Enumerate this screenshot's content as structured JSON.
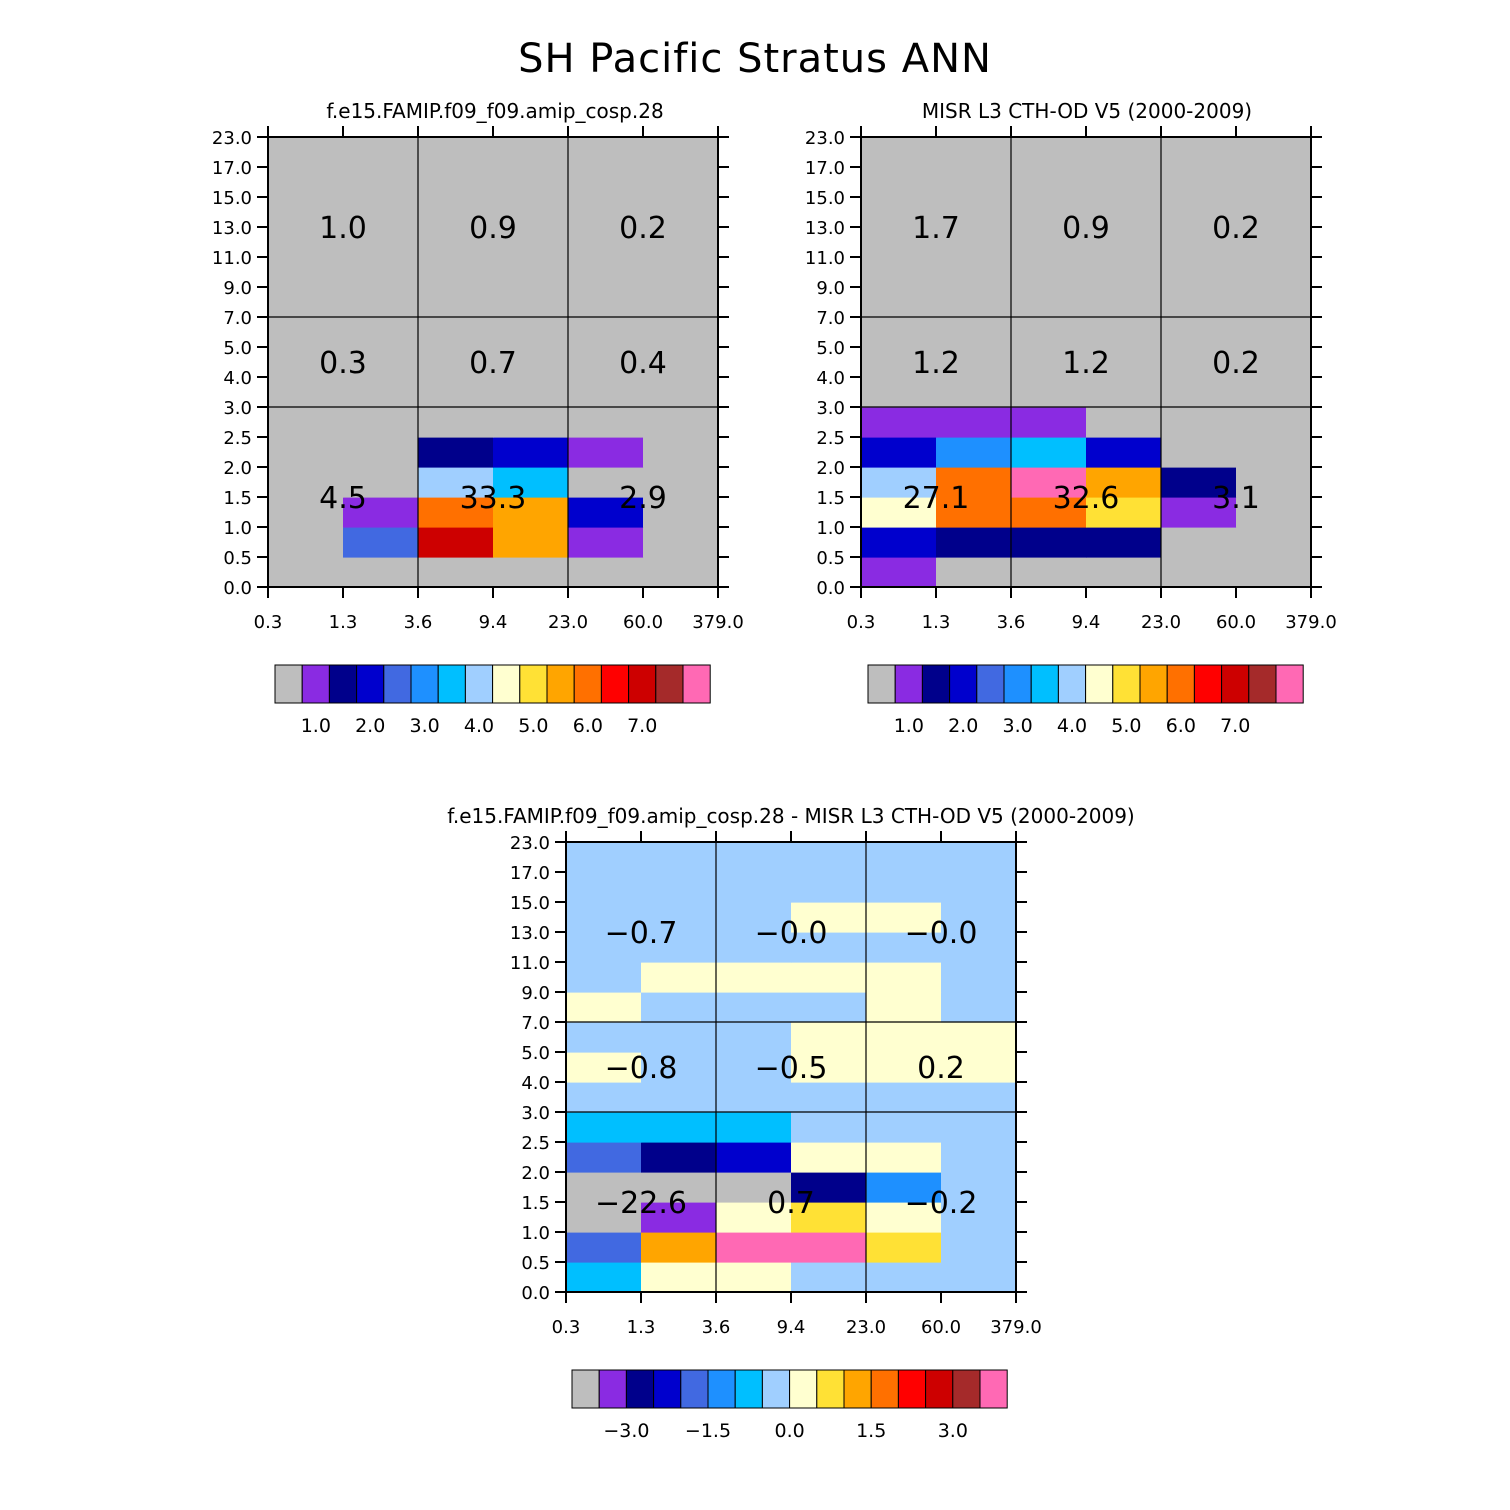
{
  "title": "SH Pacific Stratus ANN",
  "palette": [
    "#bebebe",
    "#8a2be2",
    "#00008b",
    "#0000cd",
    "#4169e1",
    "#1e90ff",
    "#00bfff",
    "#a0cfff",
    "#ffffd0",
    "#ffe135",
    "#ffa500",
    "#ff7000",
    "#ff0000",
    "#cd0000",
    "#a52a2a",
    "#ff69b4"
  ],
  "chart_data": [
    {
      "type": "heatmap",
      "title": "f.e15.FAMIP.f09_f09.amip_cosp.28",
      "xticks": [
        "0.3",
        "1.3",
        "3.6",
        "9.4",
        "23.0",
        "60.0",
        "379.0"
      ],
      "yticks": [
        "0.0",
        "0.5",
        "1.0",
        "1.5",
        "2.0",
        "2.5",
        "3.0",
        "4.0",
        "5.0",
        "7.0",
        "9.0",
        "11.0",
        "13.0",
        "15.0",
        "17.0",
        "23.0"
      ],
      "cells": [
        [
          0,
          0,
          0,
          0,
          0,
          0
        ],
        [
          0,
          4,
          13,
          10,
          1,
          0
        ],
        [
          0,
          1,
          11,
          10,
          3,
          0
        ],
        [
          0,
          0,
          7,
          6,
          0,
          0
        ],
        [
          0,
          0,
          2,
          3,
          1,
          0
        ],
        [
          0,
          0,
          0,
          0,
          0,
          0
        ],
        [
          0,
          0,
          0,
          0,
          0,
          0
        ],
        [
          0,
          0,
          0,
          0,
          0,
          0
        ],
        [
          0,
          0,
          0,
          0,
          0,
          0
        ],
        [
          0,
          0,
          0,
          0,
          0,
          0
        ],
        [
          0,
          0,
          0,
          0,
          0,
          0
        ],
        [
          0,
          0,
          0,
          0,
          0,
          0
        ],
        [
          0,
          0,
          0,
          0,
          0,
          0
        ],
        [
          0,
          0,
          0,
          0,
          0,
          0
        ],
        [
          0,
          0,
          0,
          0,
          0,
          0
        ]
      ],
      "aggregates": [
        {
          "col": 0,
          "row": 0,
          "label": "4.5"
        },
        {
          "col": 1,
          "row": 0,
          "label": "33.3"
        },
        {
          "col": 2,
          "row": 0,
          "label": "2.9"
        },
        {
          "col": 0,
          "row": 1,
          "label": "0.3"
        },
        {
          "col": 1,
          "row": 1,
          "label": "0.7"
        },
        {
          "col": 2,
          "row": 1,
          "label": "0.4"
        },
        {
          "col": 0,
          "row": 2,
          "label": "1.0"
        },
        {
          "col": 1,
          "row": 2,
          "label": "0.9"
        },
        {
          "col": 2,
          "row": 2,
          "label": "0.2"
        }
      ],
      "colorbar_labels": [
        "1.0",
        "2.0",
        "3.0",
        "4.0",
        "5.0",
        "6.0",
        "7.0"
      ]
    },
    {
      "type": "heatmap",
      "title": "MISR L3 CTH-OD V5 (2000-2009)",
      "xticks": [
        "0.3",
        "1.3",
        "3.6",
        "9.4",
        "23.0",
        "60.0",
        "379.0"
      ],
      "yticks": [
        "0.0",
        "0.5",
        "1.0",
        "1.5",
        "2.0",
        "2.5",
        "3.0",
        "4.0",
        "5.0",
        "7.0",
        "9.0",
        "11.0",
        "13.0",
        "15.0",
        "17.0",
        "23.0"
      ],
      "cells": [
        [
          1,
          0,
          0,
          0,
          0,
          0
        ],
        [
          3,
          2,
          2,
          2,
          0,
          0
        ],
        [
          8,
          11,
          11,
          9,
          1,
          0
        ],
        [
          7,
          11,
          15,
          10,
          2,
          0
        ],
        [
          3,
          5,
          6,
          3,
          0,
          0
        ],
        [
          1,
          1,
          1,
          0,
          0,
          0
        ],
        [
          0,
          0,
          0,
          0,
          0,
          0
        ],
        [
          0,
          0,
          0,
          0,
          0,
          0
        ],
        [
          0,
          0,
          0,
          0,
          0,
          0
        ],
        [
          0,
          0,
          0,
          0,
          0,
          0
        ],
        [
          0,
          0,
          0,
          0,
          0,
          0
        ],
        [
          0,
          0,
          0,
          0,
          0,
          0
        ],
        [
          0,
          0,
          0,
          0,
          0,
          0
        ],
        [
          0,
          0,
          0,
          0,
          0,
          0
        ],
        [
          0,
          0,
          0,
          0,
          0,
          0
        ]
      ],
      "aggregates": [
        {
          "col": 0,
          "row": 0,
          "label": "27.1"
        },
        {
          "col": 1,
          "row": 0,
          "label": "32.6"
        },
        {
          "col": 2,
          "row": 0,
          "label": "3.1"
        },
        {
          "col": 0,
          "row": 1,
          "label": "1.2"
        },
        {
          "col": 1,
          "row": 1,
          "label": "1.2"
        },
        {
          "col": 2,
          "row": 1,
          "label": "0.2"
        },
        {
          "col": 0,
          "row": 2,
          "label": "1.7"
        },
        {
          "col": 1,
          "row": 2,
          "label": "0.9"
        },
        {
          "col": 2,
          "row": 2,
          "label": "0.2"
        }
      ],
      "colorbar_labels": [
        "1.0",
        "2.0",
        "3.0",
        "4.0",
        "5.0",
        "6.0",
        "7.0"
      ]
    },
    {
      "type": "heatmap",
      "title": "f.e15.FAMIP.f09_f09.amip_cosp.28 - MISR L3 CTH-OD V5 (2000-2009)",
      "xticks": [
        "0.3",
        "1.3",
        "3.6",
        "9.4",
        "23.0",
        "60.0",
        "379.0"
      ],
      "yticks": [
        "0.0",
        "0.5",
        "1.0",
        "1.5",
        "2.0",
        "2.5",
        "3.0",
        "4.0",
        "5.0",
        "7.0",
        "9.0",
        "11.0",
        "13.0",
        "15.0",
        "17.0",
        "23.0"
      ],
      "cells": [
        [
          6,
          8,
          8,
          7,
          7,
          7
        ],
        [
          4,
          10,
          15,
          15,
          9,
          7
        ],
        [
          0,
          1,
          8,
          9,
          8,
          7
        ],
        [
          0,
          0,
          0,
          2,
          5,
          7
        ],
        [
          4,
          2,
          3,
          8,
          8,
          7
        ],
        [
          6,
          6,
          6,
          7,
          7,
          7
        ],
        [
          7,
          7,
          7,
          7,
          7,
          7
        ],
        [
          8,
          7,
          7,
          8,
          8,
          8
        ],
        [
          7,
          7,
          7,
          8,
          8,
          8
        ],
        [
          8,
          7,
          7,
          7,
          8,
          7
        ],
        [
          7,
          8,
          8,
          8,
          8,
          7
        ],
        [
          7,
          7,
          7,
          7,
          7,
          7
        ],
        [
          7,
          7,
          7,
          8,
          8,
          7
        ],
        [
          7,
          7,
          7,
          7,
          7,
          7
        ],
        [
          7,
          7,
          7,
          7,
          7,
          7
        ]
      ],
      "aggregates": [
        {
          "col": 0,
          "row": 0,
          "label": "−22.6"
        },
        {
          "col": 1,
          "row": 0,
          "label": "0.7"
        },
        {
          "col": 2,
          "row": 0,
          "label": "−0.2"
        },
        {
          "col": 0,
          "row": 1,
          "label": "−0.8"
        },
        {
          "col": 1,
          "row": 1,
          "label": "−0.5"
        },
        {
          "col": 2,
          "row": 1,
          "label": "0.2"
        },
        {
          "col": 0,
          "row": 2,
          "label": "−0.7"
        },
        {
          "col": 1,
          "row": 2,
          "label": "−0.0"
        },
        {
          "col": 2,
          "row": 2,
          "label": "−0.0"
        }
      ],
      "colorbar_labels": [
        "−3.0",
        "−1.5",
        "0.0",
        "1.5",
        "3.0"
      ]
    }
  ]
}
